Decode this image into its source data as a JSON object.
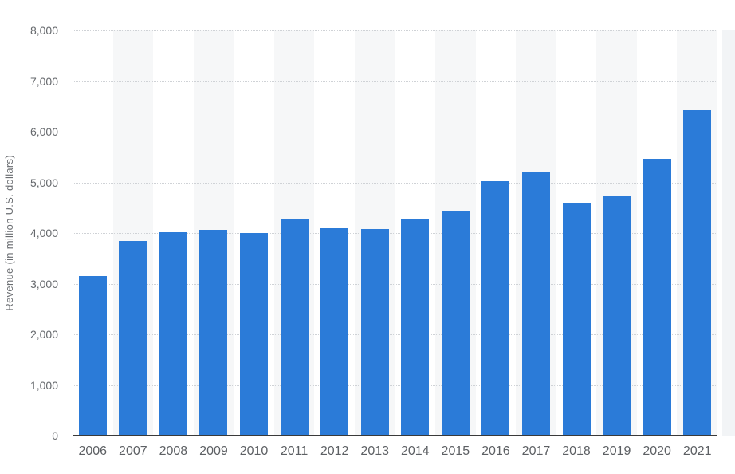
{
  "chart_data": {
    "type": "bar",
    "title": "",
    "categories": [
      "2006",
      "2007",
      "2008",
      "2009",
      "2010",
      "2011",
      "2012",
      "2013",
      "2014",
      "2015",
      "2016",
      "2017",
      "2018",
      "2019",
      "2020",
      "2021"
    ],
    "values": [
      3151,
      3838,
      4022,
      4068,
      4002,
      4286,
      4089,
      4082,
      4277,
      4448,
      5020,
      5210,
      4580,
      4720,
      5465,
      6420
    ],
    "xlabel": "",
    "ylabel": "Revenue (in million U.S. dollars)",
    "ylim": [
      0,
      8000
    ],
    "ytick_interval": 1000,
    "ytick_labels": [
      "0",
      "1,000",
      "2,000",
      "3,000",
      "4,000",
      "5,000",
      "6,000",
      "7,000",
      "8,000"
    ],
    "grid": "horizontal-dotted",
    "legend": "none",
    "plot_background": "alternating column bands starting white at 2006"
  },
  "colors": {
    "bar": "#2b7bd8",
    "band": "#f6f7f8",
    "gridline": "#cfd2d6",
    "axis_line": "#3a3a3a",
    "tick_text": "#66696d",
    "background": "#ffffff",
    "right_edge_strip": "#f2f4f6"
  }
}
